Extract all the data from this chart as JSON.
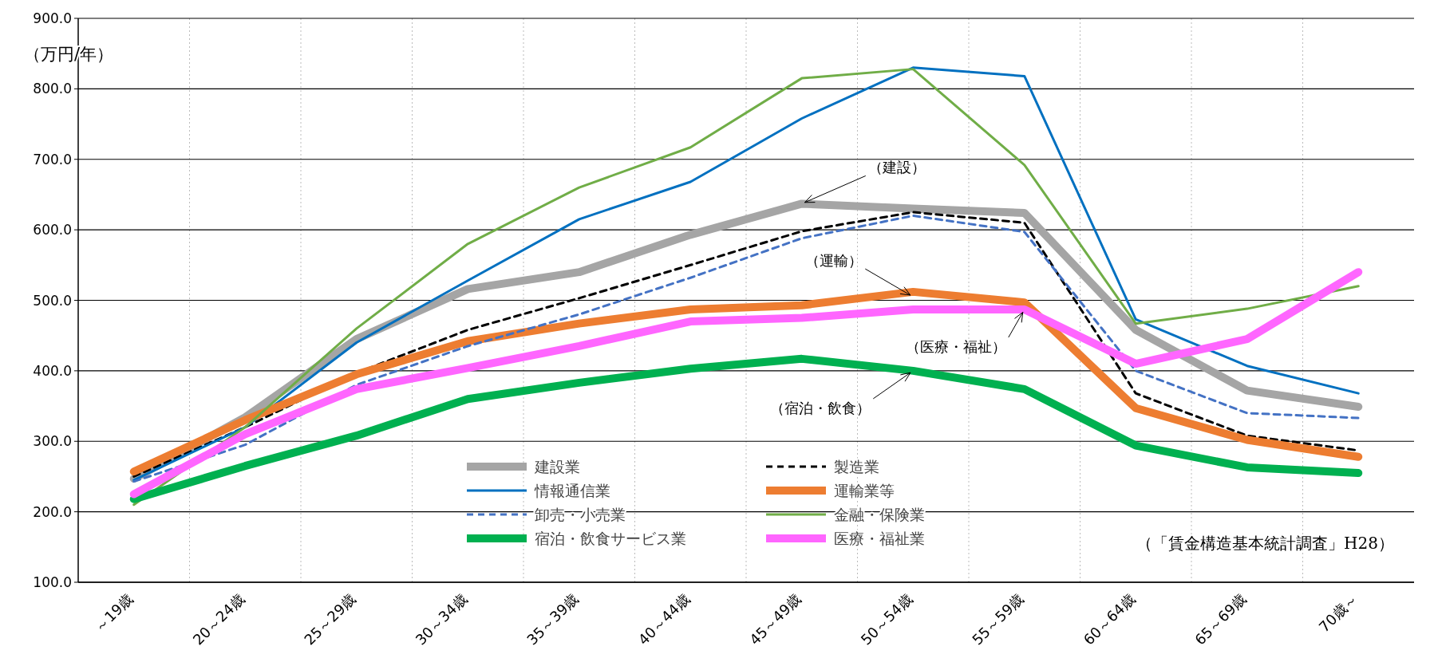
{
  "chart_data": {
    "type": "line",
    "ylabel": "（万円/年）",
    "categories": [
      "～19歳",
      "20～24歳",
      "25～29歳",
      "30～34歳",
      "35～39歳",
      "40～44歳",
      "45～49歳",
      "50～54歳",
      "55～59歳",
      "60～64歳",
      "65～69歳",
      "70歳～"
    ],
    "ylim": [
      100,
      900
    ],
    "yticks": [
      {
        "value": 100,
        "label": "100.0"
      },
      {
        "value": 200,
        "label": "200.0"
      },
      {
        "value": 300,
        "label": "300.0"
      },
      {
        "value": 400,
        "label": "400.0"
      },
      {
        "value": 500,
        "label": "500.0"
      },
      {
        "value": 600,
        "label": "600.0"
      },
      {
        "value": 700,
        "label": "700.0"
      },
      {
        "value": 800,
        "label": "800.0"
      },
      {
        "value": 900,
        "label": "900.0"
      }
    ],
    "grid": "y",
    "legend": "bottom",
    "marker": "none",
    "series": [
      {
        "name": "建設業",
        "color": "#a5a5a5",
        "values": [
          247,
          334,
          445,
          516,
          540,
          593,
          637,
          630,
          624,
          458,
          372,
          349
        ]
      },
      {
        "name": "製造業",
        "color": "#000000",
        "line_style": "dashed",
        "values": [
          250,
          320,
          397,
          458,
          503,
          550,
          598,
          625,
          610,
          368,
          308,
          287
        ]
      },
      {
        "name": "情報通信業",
        "color": "#0070c0",
        "values": [
          245,
          320,
          440,
          528,
          615,
          668,
          758,
          830,
          818,
          473,
          407,
          368
        ]
      },
      {
        "name": "運輸業等",
        "color": "#ed7d31",
        "values": [
          257,
          330,
          395,
          442,
          467,
          487,
          493,
          512,
          497,
          347,
          302,
          278
        ]
      },
      {
        "name": "卸売・小売業",
        "color": "#4472c4",
        "line_style": "dashed",
        "values": [
          243,
          295,
          380,
          435,
          480,
          532,
          588,
          620,
          597,
          400,
          340,
          333
        ]
      },
      {
        "name": "金融・保険業",
        "color": "#70ad47",
        "values": [
          210,
          320,
          460,
          580,
          660,
          717,
          815,
          828,
          692,
          467,
          488,
          520
        ]
      },
      {
        "name": "宿泊・飲食サービス業",
        "color": "#00b050",
        "values": [
          218,
          265,
          308,
          360,
          383,
          403,
          417,
          400,
          374,
          294,
          263,
          255
        ]
      },
      {
        "name": "医療・福祉業",
        "color": "#ff66ff",
        "values": [
          225,
          310,
          374,
          404,
          435,
          470,
          475,
          487,
          487,
          410,
          445,
          540
        ]
      }
    ],
    "annotations": [
      {
        "text": "（建設）",
        "x": "45～49歳",
        "y": 637
      },
      {
        "text": "（運輸）",
        "x": "50～54歳",
        "y": 505
      },
      {
        "text": "（医療・福祉）",
        "x": "55～59歳",
        "y": 487
      },
      {
        "text": "（宿泊・飲食）",
        "x": "50～54歳",
        "y": 400
      },
      "（「賃金構造基本統計調査」H28）"
    ]
  }
}
